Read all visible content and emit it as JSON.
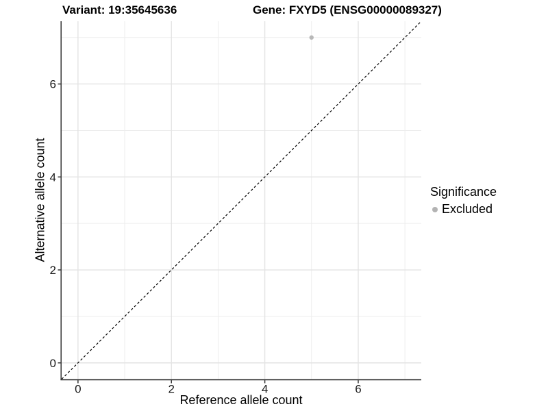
{
  "chart_data": {
    "type": "scatter",
    "title_left": "Variant: 19:35645636",
    "title_right": "Gene: FXYD5 (ENSG00000089327)",
    "xlabel": "Reference allele count",
    "ylabel": "Alternative allele count",
    "xlim": [
      -0.35,
      7.35
    ],
    "ylim": [
      -0.35,
      7.35
    ],
    "x_ticks": [
      0,
      2,
      4,
      6
    ],
    "y_ticks": [
      0,
      2,
      4,
      6
    ],
    "x_minor_gridlines": [
      1,
      3,
      5,
      7
    ],
    "y_minor_gridlines": [
      1,
      3,
      5,
      7
    ],
    "grid": "major and minor, light gray on white panel",
    "points": [
      {
        "x": 5,
        "y": 7,
        "series": "Excluded"
      }
    ],
    "identity_line": {
      "slope": 1,
      "intercept": 0,
      "linetype": "dashed",
      "color": "#000000"
    },
    "legend": {
      "title": "Significance",
      "position": "right",
      "entries": [
        {
          "label": "Excluded",
          "marker": "circle",
          "color": "#b3b3b3"
        }
      ]
    },
    "colors": {
      "point": "#b8b8b8",
      "grid_major": "#e3e3e3",
      "grid_minor": "#ededed",
      "axis_line": "#3f3f3f",
      "tick_mark": "#333333",
      "tick_label": "#1a1a1a",
      "background": "#ffffff"
    }
  }
}
